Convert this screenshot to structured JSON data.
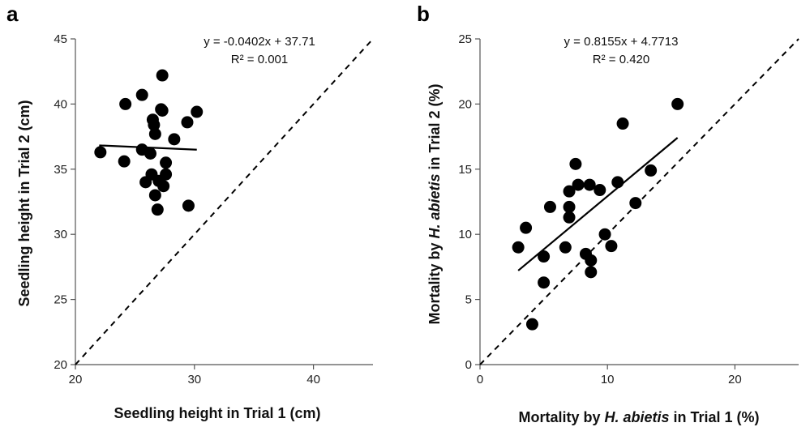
{
  "chart_data": [
    {
      "type": "scatter",
      "panel_label": "a",
      "xlabel": "Seedling height in Trial 1 (cm)",
      "ylabel": "Seedling height in Trial 2 (cm)",
      "xlim": [
        20,
        45
      ],
      "ylim": [
        20,
        45
      ],
      "xticks": [
        20,
        30,
        40
      ],
      "yticks": [
        20,
        25,
        30,
        35,
        40,
        45
      ],
      "equation": "y = -0.0402x + 37.71",
      "r_squared": "R² = 0.001",
      "trendline": {
        "slope": -0.0402,
        "intercept": 37.71,
        "x_range": [
          22.0,
          30.2
        ]
      },
      "reference_line": "1:1",
      "points": [
        {
          "x": 22.1,
          "y": 36.3
        },
        {
          "x": 24.1,
          "y": 35.6
        },
        {
          "x": 24.2,
          "y": 40.0
        },
        {
          "x": 25.6,
          "y": 40.7
        },
        {
          "x": 25.6,
          "y": 36.5
        },
        {
          "x": 25.9,
          "y": 34.0
        },
        {
          "x": 26.3,
          "y": 36.2
        },
        {
          "x": 26.4,
          "y": 34.6
        },
        {
          "x": 26.5,
          "y": 38.8
        },
        {
          "x": 26.6,
          "y": 38.4
        },
        {
          "x": 26.7,
          "y": 37.7
        },
        {
          "x": 26.7,
          "y": 33.0
        },
        {
          "x": 26.9,
          "y": 31.9
        },
        {
          "x": 27.0,
          "y": 34.1
        },
        {
          "x": 27.2,
          "y": 39.6
        },
        {
          "x": 27.3,
          "y": 42.2
        },
        {
          "x": 27.3,
          "y": 39.5
        },
        {
          "x": 27.4,
          "y": 33.7
        },
        {
          "x": 27.6,
          "y": 34.6
        },
        {
          "x": 27.6,
          "y": 35.5
        },
        {
          "x": 28.3,
          "y": 37.3
        },
        {
          "x": 29.4,
          "y": 38.6
        },
        {
          "x": 29.5,
          "y": 32.2
        },
        {
          "x": 30.2,
          "y": 39.4
        }
      ]
    },
    {
      "type": "scatter",
      "panel_label": "b",
      "xlabel_prefix": "Mortality by ",
      "xlabel_italic": "H. abietis",
      "xlabel_suffix": " in Trial 1 (%)",
      "ylabel_prefix": "Mortality by ",
      "ylabel_italic": "H. abietis",
      "ylabel_suffix": " in Trial 2 (%)",
      "xlim": [
        0,
        25
      ],
      "ylim": [
        0,
        25
      ],
      "xticks": [
        0,
        10,
        20
      ],
      "yticks": [
        0,
        5,
        10,
        15,
        20,
        25
      ],
      "equation": "y = 0.8155x + 4.7713",
      "r_squared": "R² = 0.420",
      "trendline": {
        "slope": 0.8155,
        "intercept": 4.7713,
        "x_range": [
          3.0,
          15.5
        ]
      },
      "reference_line": "1:1",
      "points": [
        {
          "x": 3.0,
          "y": 9.0
        },
        {
          "x": 3.6,
          "y": 10.5
        },
        {
          "x": 4.1,
          "y": 3.1
        },
        {
          "x": 5.0,
          "y": 8.3
        },
        {
          "x": 5.0,
          "y": 6.3
        },
        {
          "x": 5.5,
          "y": 12.1
        },
        {
          "x": 6.7,
          "y": 9.0
        },
        {
          "x": 7.0,
          "y": 11.3
        },
        {
          "x": 7.0,
          "y": 12.1
        },
        {
          "x": 7.0,
          "y": 13.3
        },
        {
          "x": 7.5,
          "y": 15.4
        },
        {
          "x": 7.7,
          "y": 13.8
        },
        {
          "x": 8.3,
          "y": 8.5
        },
        {
          "x": 8.6,
          "y": 13.8
        },
        {
          "x": 8.7,
          "y": 8.0
        },
        {
          "x": 8.7,
          "y": 7.1
        },
        {
          "x": 9.4,
          "y": 13.4
        },
        {
          "x": 9.8,
          "y": 10.0
        },
        {
          "x": 10.3,
          "y": 9.1
        },
        {
          "x": 10.8,
          "y": 14.0
        },
        {
          "x": 11.2,
          "y": 18.5
        },
        {
          "x": 12.2,
          "y": 12.4
        },
        {
          "x": 13.4,
          "y": 14.9
        },
        {
          "x": 15.5,
          "y": 20.0
        }
      ]
    }
  ]
}
